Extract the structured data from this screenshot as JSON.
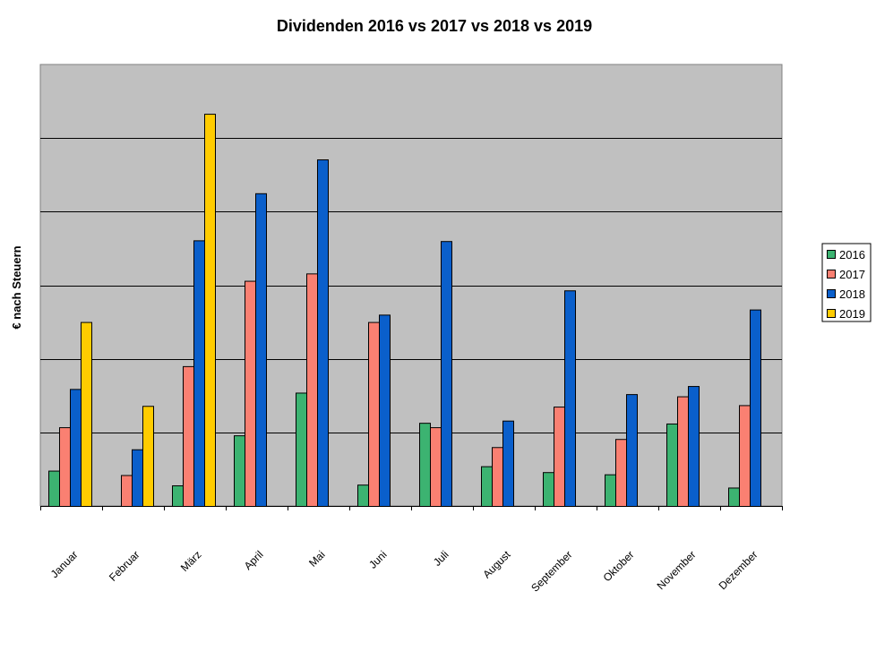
{
  "chart_data": {
    "type": "bar",
    "title": "Dividenden 2016 vs 2017 vs 2018 vs 2019",
    "xlabel": "",
    "ylabel": "€ nach Steuern",
    "ylim": [
      0,
      6
    ],
    "gridlines": true,
    "legend_position": "right",
    "categories": [
      "Januar",
      "Februar",
      "März",
      "April",
      "Mai",
      "Juni",
      "Juli",
      "August",
      "September",
      "Oktober",
      "November",
      "Dezember"
    ],
    "series": [
      {
        "name": "2016",
        "color": "#3cb371",
        "values": [
          0.48,
          0,
          0.28,
          0.96,
          1.54,
          0.29,
          1.13,
          0.54,
          0.46,
          0.43,
          1.12,
          0.25
        ]
      },
      {
        "name": "2017",
        "color": "#fa8072",
        "values": [
          1.07,
          0.42,
          1.9,
          3.06,
          3.16,
          2.5,
          1.07,
          0.8,
          1.35,
          0.91,
          1.49,
          1.37
        ]
      },
      {
        "name": "2018",
        "color": "#0a5fcb",
        "values": [
          1.59,
          0.77,
          3.61,
          4.25,
          4.71,
          2.6,
          3.6,
          1.16,
          2.93,
          1.52,
          1.63,
          2.67
        ]
      },
      {
        "name": "2019",
        "color": "#ffcc00",
        "values": [
          2.5,
          1.36,
          5.33,
          null,
          null,
          null,
          null,
          null,
          null,
          null,
          null,
          null
        ]
      }
    ]
  }
}
